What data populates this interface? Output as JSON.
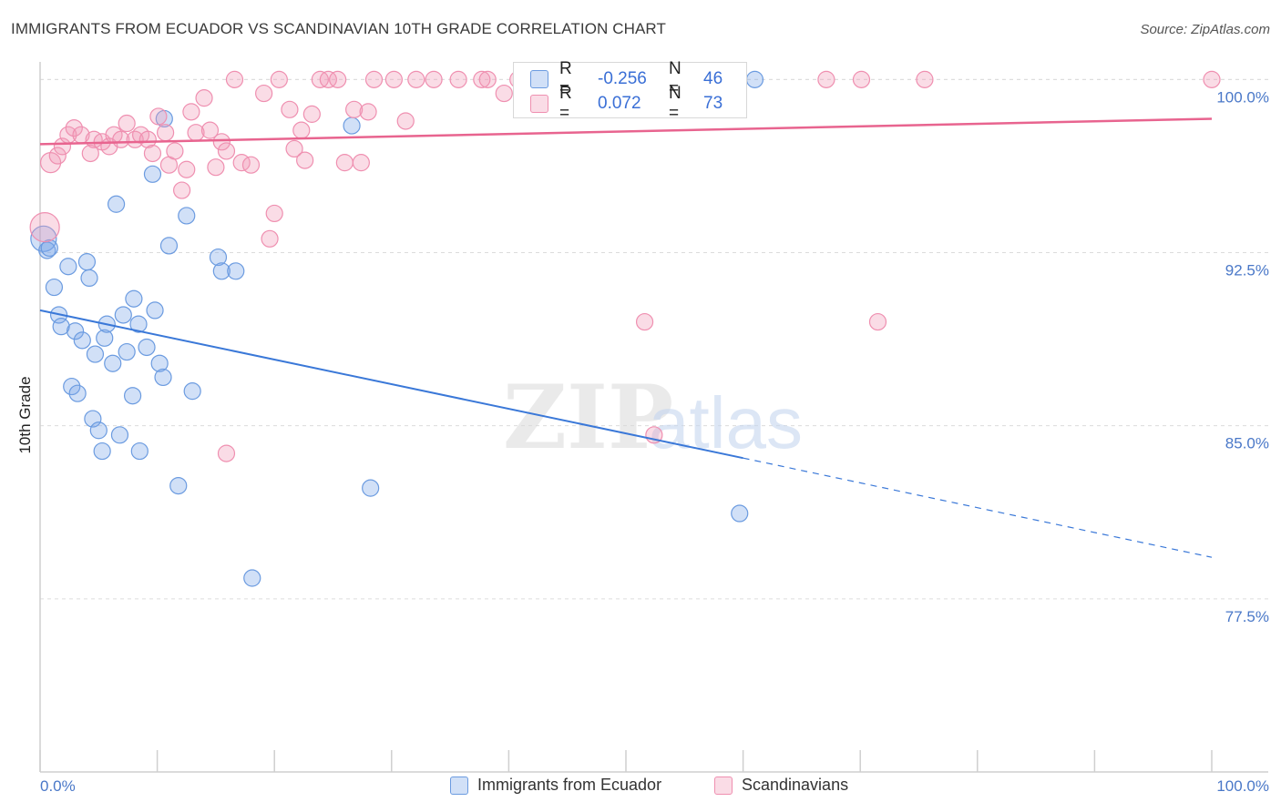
{
  "title": "IMMIGRANTS FROM ECUADOR VS SCANDINAVIAN 10TH GRADE CORRELATION CHART",
  "source": "Source: ZipAtlas.com",
  "watermark": {
    "zip": "ZIP",
    "atlas": "atlas"
  },
  "legend_box": {
    "rows": [
      {
        "r_label": "R =",
        "r_value": "-0.256",
        "n_label": "N =",
        "n_value": "46",
        "color": "#7aa6e8"
      },
      {
        "r_label": "R =",
        "r_value": "0.072",
        "n_label": "N =",
        "n_value": "73",
        "color": "#f09ab8"
      }
    ]
  },
  "legend_bottom": [
    {
      "label": "Immigrants from Ecuador",
      "color": "#7aa6e8"
    },
    {
      "label": "Scandinavians",
      "color": "#f09ab8"
    }
  ],
  "colors": {
    "blue_fill": "rgba(122,166,232,0.35)",
    "blue_stroke": "#6b9be0",
    "blue_line": "#3a78d8",
    "pink_fill": "rgba(240,154,184,0.35)",
    "pink_stroke": "#ef8fb0",
    "pink_line": "#e8648f"
  },
  "chart_data": {
    "type": "scatter",
    "title": "IMMIGRANTS FROM ECUADOR VS SCANDINAVIAN 10TH GRADE CORRELATION CHART",
    "xlabel": "",
    "ylabel": "10th Grade",
    "xlim": [
      0,
      100
    ],
    "ylim": [
      70.0,
      101.0
    ],
    "x_tick_labels": [
      "0.0%",
      "100.0%"
    ],
    "y_ticks": [
      77.5,
      85.0,
      92.5,
      100.0
    ],
    "y_tick_labels": [
      "77.5%",
      "85.0%",
      "92.5%",
      "100.0%"
    ],
    "grid": true,
    "series": [
      {
        "name": "Immigrants from Ecuador",
        "trend": {
          "x0": 0,
          "y0": 90.0,
          "x1": 60,
          "y1": 83.6,
          "dash_to_x": 100,
          "dash_to_y": 79.3
        },
        "points": [
          [
            0.3,
            93.1,
            14
          ],
          [
            0.6,
            92.6,
            9
          ],
          [
            0.8,
            92.7,
            9
          ],
          [
            1.2,
            91.0,
            9
          ],
          [
            2.4,
            91.9,
            9
          ],
          [
            4.0,
            92.1,
            9
          ],
          [
            4.2,
            91.4,
            9
          ],
          [
            1.6,
            89.8,
            9
          ],
          [
            1.8,
            89.3,
            9
          ],
          [
            3.0,
            89.1,
            9
          ],
          [
            3.6,
            88.7,
            9
          ],
          [
            4.7,
            88.1,
            9
          ],
          [
            5.5,
            88.8,
            9
          ],
          [
            5.7,
            89.4,
            9
          ],
          [
            6.2,
            87.7,
            9
          ],
          [
            7.1,
            89.8,
            9
          ],
          [
            7.4,
            88.2,
            9
          ],
          [
            8.0,
            90.5,
            9
          ],
          [
            8.4,
            89.4,
            9
          ],
          [
            9.1,
            88.4,
            9
          ],
          [
            9.8,
            90.0,
            9
          ],
          [
            10.2,
            87.7,
            9
          ],
          [
            10.5,
            87.1,
            9
          ],
          [
            2.7,
            86.7,
            9
          ],
          [
            3.2,
            86.4,
            9
          ],
          [
            7.9,
            86.3,
            9
          ],
          [
            13.0,
            86.5,
            9
          ],
          [
            4.5,
            85.3,
            9
          ],
          [
            5.0,
            84.8,
            9
          ],
          [
            6.8,
            84.6,
            9
          ],
          [
            5.3,
            83.9,
            9
          ],
          [
            8.5,
            83.9,
            9
          ],
          [
            11.8,
            82.4,
            9
          ],
          [
            28.2,
            82.3,
            9
          ],
          [
            59.7,
            81.2,
            9
          ],
          [
            18.1,
            78.4,
            9
          ],
          [
            6.5,
            94.6,
            9
          ],
          [
            9.6,
            95.9,
            9
          ],
          [
            10.6,
            98.3,
            9
          ],
          [
            12.5,
            94.1,
            9
          ],
          [
            11.0,
            92.8,
            9
          ],
          [
            15.2,
            92.3,
            9
          ],
          [
            15.5,
            91.7,
            9
          ],
          [
            16.7,
            91.7,
            9
          ],
          [
            26.6,
            98.0,
            9
          ],
          [
            61.0,
            100.0,
            9
          ]
        ]
      },
      {
        "name": "Scandinavians",
        "trend": {
          "x0": 0,
          "y0": 97.2,
          "x1": 100,
          "y1": 98.3
        },
        "points": [
          [
            0.4,
            93.6,
            16
          ],
          [
            0.9,
            96.4,
            11
          ],
          [
            1.5,
            96.7,
            9
          ],
          [
            1.9,
            97.1,
            9
          ],
          [
            2.4,
            97.6,
            9
          ],
          [
            2.9,
            97.9,
            9
          ],
          [
            3.5,
            97.6,
            9
          ],
          [
            4.3,
            96.8,
            9
          ],
          [
            4.6,
            97.4,
            9
          ],
          [
            5.3,
            97.3,
            9
          ],
          [
            5.9,
            97.1,
            9
          ],
          [
            6.3,
            97.6,
            9
          ],
          [
            6.9,
            97.4,
            9
          ],
          [
            7.4,
            98.1,
            9
          ],
          [
            8.1,
            97.4,
            9
          ],
          [
            8.6,
            97.6,
            9
          ],
          [
            9.2,
            97.4,
            9
          ],
          [
            9.6,
            96.8,
            9
          ],
          [
            10.1,
            98.4,
            9
          ],
          [
            10.7,
            97.7,
            9
          ],
          [
            11.0,
            96.3,
            9
          ],
          [
            11.5,
            96.9,
            9
          ],
          [
            12.1,
            95.2,
            9
          ],
          [
            12.5,
            96.1,
            9
          ],
          [
            12.9,
            98.6,
            9
          ],
          [
            13.3,
            97.7,
            9
          ],
          [
            14.0,
            99.2,
            9
          ],
          [
            14.5,
            97.8,
            9
          ],
          [
            15.0,
            96.2,
            9
          ],
          [
            15.5,
            97.3,
            9
          ],
          [
            15.9,
            96.9,
            9
          ],
          [
            16.6,
            100.0,
            9
          ],
          [
            17.2,
            96.4,
            9
          ],
          [
            18.0,
            96.3,
            9
          ],
          [
            19.1,
            99.4,
            9
          ],
          [
            19.6,
            93.1,
            9
          ],
          [
            20.0,
            94.2,
            9
          ],
          [
            20.4,
            100.0,
            9
          ],
          [
            21.3,
            98.7,
            9
          ],
          [
            21.7,
            97.0,
            9
          ],
          [
            22.3,
            97.8,
            9
          ],
          [
            22.6,
            96.5,
            9
          ],
          [
            23.2,
            98.5,
            9
          ],
          [
            23.9,
            100.0,
            9
          ],
          [
            24.6,
            100.0,
            9
          ],
          [
            25.4,
            100.0,
            9
          ],
          [
            26.0,
            96.4,
            9
          ],
          [
            26.8,
            98.7,
            9
          ],
          [
            27.4,
            96.4,
            9
          ],
          [
            28.0,
            98.6,
            9
          ],
          [
            28.5,
            100.0,
            9
          ],
          [
            30.2,
            100.0,
            9
          ],
          [
            31.2,
            98.2,
            9
          ],
          [
            32.1,
            100.0,
            9
          ],
          [
            33.6,
            100.0,
            9
          ],
          [
            35.7,
            100.0,
            9
          ],
          [
            37.7,
            100.0,
            9
          ],
          [
            38.2,
            100.0,
            9
          ],
          [
            39.6,
            99.4,
            9
          ],
          [
            40.8,
            100.0,
            9
          ],
          [
            42.6,
            100.0,
            9
          ],
          [
            45.2,
            100.0,
            9
          ],
          [
            47.2,
            100.0,
            9
          ],
          [
            49.4,
            100.0,
            9
          ],
          [
            51.2,
            100.0,
            9
          ],
          [
            15.9,
            83.8,
            9
          ],
          [
            51.6,
            89.5,
            9
          ],
          [
            52.4,
            84.6,
            9
          ],
          [
            71.5,
            89.5,
            9
          ],
          [
            67.1,
            100.0,
            9
          ],
          [
            70.1,
            100.0,
            9
          ],
          [
            75.5,
            100.0,
            9
          ],
          [
            100.0,
            100.0,
            9
          ]
        ]
      }
    ]
  }
}
